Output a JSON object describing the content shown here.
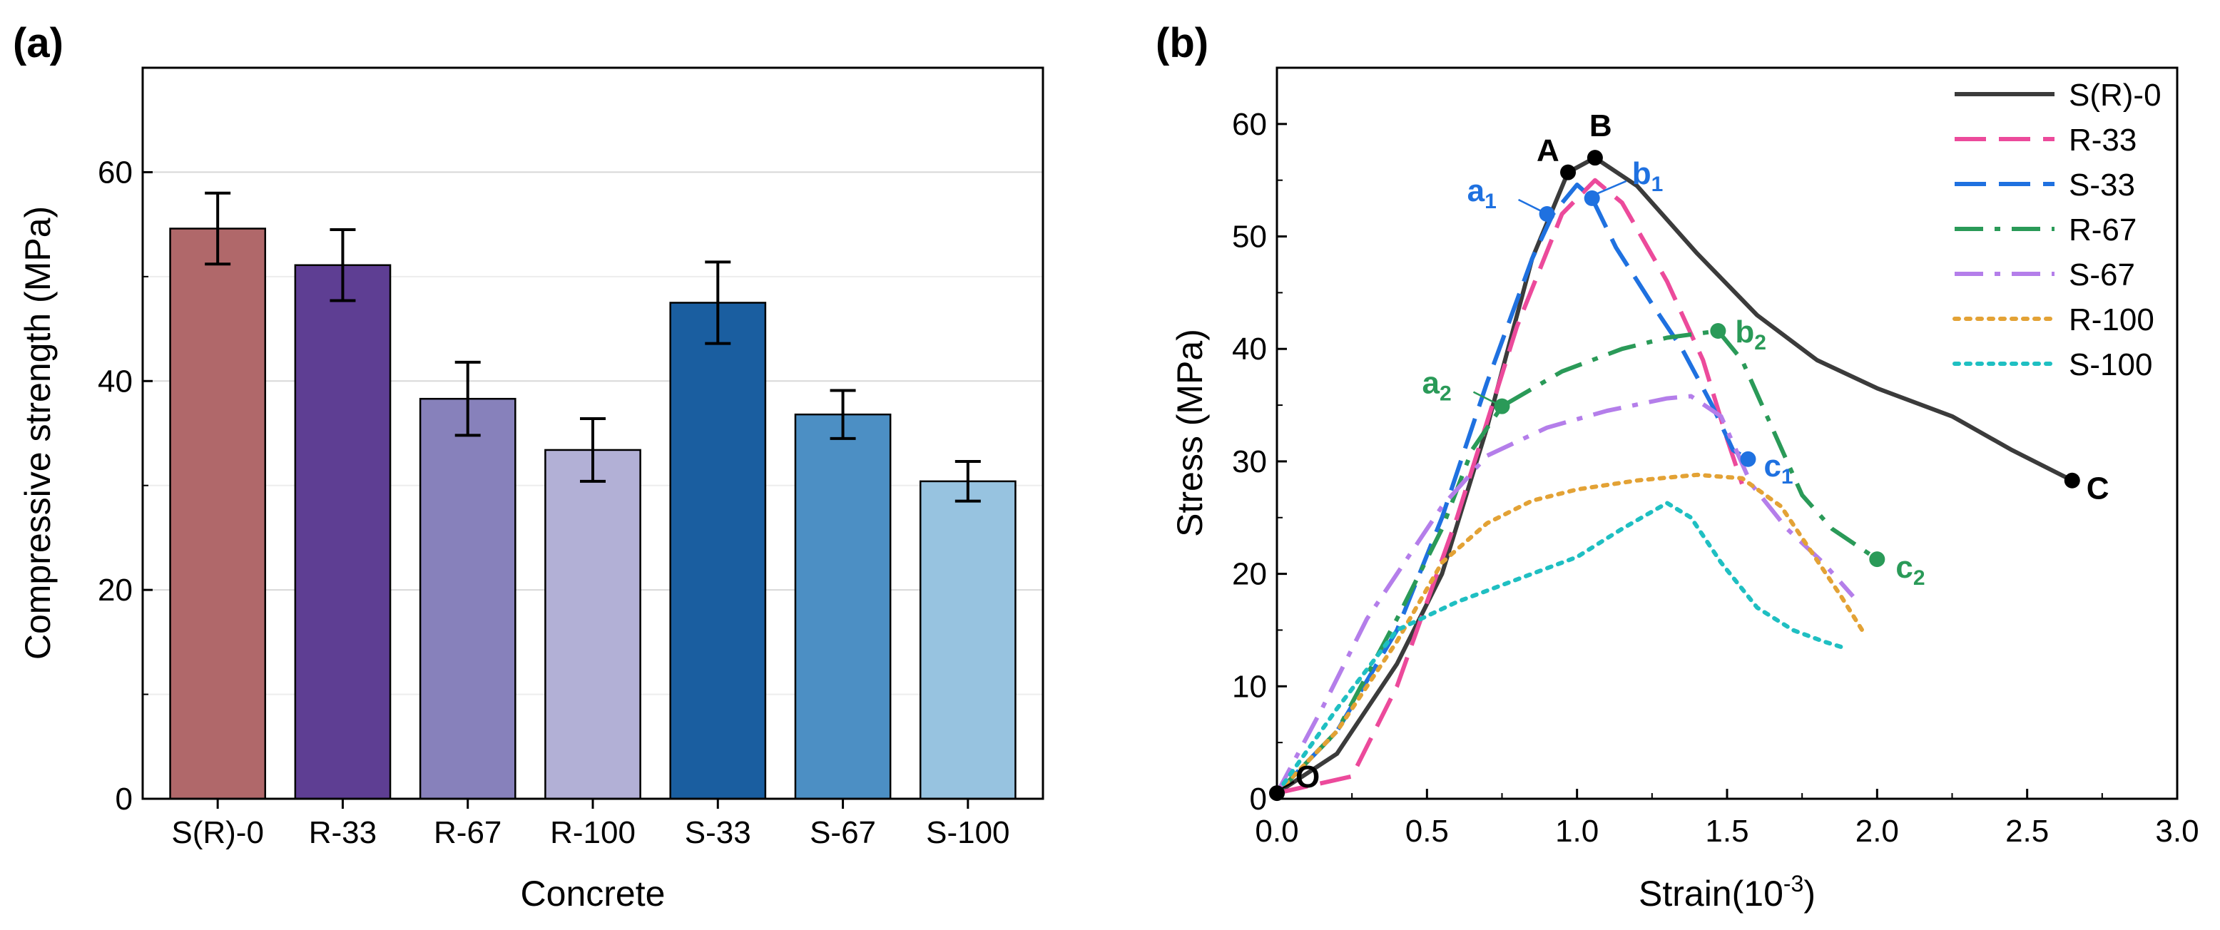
{
  "figure": {
    "panel_a_label": "(a)",
    "panel_b_label": "(b)"
  },
  "chart_data": [
    {
      "type": "bar",
      "panel": "(a)",
      "xlabel": "Concrete",
      "ylabel": "Compressive strength (MPa)",
      "ylim": [
        0,
        70
      ],
      "yticks": [
        0,
        20,
        40,
        60
      ],
      "grid": true,
      "categories": [
        "S(R)-0",
        "R-33",
        "R-67",
        "R-100",
        "S-33",
        "S-67",
        "S-100"
      ],
      "values": [
        54.6,
        51.1,
        38.3,
        33.4,
        47.5,
        36.8,
        30.4
      ],
      "errors": [
        3.4,
        3.4,
        3.5,
        3.0,
        3.9,
        2.3,
        1.9
      ],
      "colors": [
        "#b0686a",
        "#5e3e93",
        "#8781bb",
        "#b2b0d6",
        "#1a5ea0",
        "#4c8fc4",
        "#97c3e0"
      ]
    },
    {
      "type": "line",
      "panel": "(b)",
      "xlabel": "Strain(10⁻³)",
      "xlabel_base": "Strain(10",
      "xlabel_sup": "-3",
      "xlabel_close": ")",
      "ylabel": "Stress (MPa)",
      "xlim": [
        0,
        3.0
      ],
      "ylim": [
        0,
        65
      ],
      "xticks": [
        "0.0",
        "0.5",
        "1.0",
        "1.5",
        "2.0",
        "2.5",
        "3.0"
      ],
      "yticks": [
        "0",
        "10",
        "20",
        "30",
        "40",
        "50",
        "60"
      ],
      "legend_position": "top-right",
      "series": [
        {
          "name": "S(R)-0",
          "color": "#3b3b3b",
          "style": "solid",
          "points": [
            [
              0,
              0.5
            ],
            [
              0.2,
              4
            ],
            [
              0.4,
              12
            ],
            [
              0.55,
              20
            ],
            [
              0.7,
              33
            ],
            [
              0.85,
              48
            ],
            [
              0.97,
              55.7
            ],
            [
              1.06,
              57
            ],
            [
              1.2,
              54.5
            ],
            [
              1.4,
              48.5
            ],
            [
              1.6,
              43
            ],
            [
              1.8,
              39
            ],
            [
              2.0,
              36.5
            ],
            [
              2.25,
              34
            ],
            [
              2.45,
              31
            ],
            [
              2.65,
              28.3
            ]
          ]
        },
        {
          "name": "R-33",
          "color": "#ec4a9b",
          "style": "dash",
          "points": [
            [
              0,
              0.5
            ],
            [
              0.25,
              2
            ],
            [
              0.4,
              10
            ],
            [
              0.6,
              25
            ],
            [
              0.8,
              42
            ],
            [
              0.95,
              52
            ],
            [
              1.06,
              55
            ],
            [
              1.15,
              53
            ],
            [
              1.3,
              46
            ],
            [
              1.42,
              39
            ],
            [
              1.5,
              32
            ],
            [
              1.55,
              28
            ]
          ]
        },
        {
          "name": "S-33",
          "color": "#1f71e0",
          "style": "dash",
          "points": [
            [
              0,
              0.5
            ],
            [
              0.2,
              6
            ],
            [
              0.4,
              15
            ],
            [
              0.55,
              25
            ],
            [
              0.7,
              37
            ],
            [
              0.85,
              48
            ],
            [
              0.92,
              52
            ],
            [
              1.0,
              54.6
            ],
            [
              1.05,
              53.4
            ],
            [
              1.13,
              49
            ],
            [
              1.25,
              44
            ],
            [
              1.35,
              40
            ],
            [
              1.45,
              35
            ],
            [
              1.52,
              31
            ],
            [
              1.57,
              30.2
            ]
          ]
        },
        {
          "name": "R-67",
          "color": "#2a9a58",
          "style": "dashdot",
          "points": [
            [
              0,
              0.5
            ],
            [
              0.2,
              6
            ],
            [
              0.4,
              16
            ],
            [
              0.55,
              24
            ],
            [
              0.65,
              31
            ],
            [
              0.75,
              34.9
            ],
            [
              0.95,
              38
            ],
            [
              1.15,
              40
            ],
            [
              1.3,
              41
            ],
            [
              1.47,
              41.6
            ],
            [
              1.55,
              39
            ],
            [
              1.65,
              33
            ],
            [
              1.75,
              27
            ],
            [
              1.85,
              24
            ],
            [
              2.0,
              21.3
            ]
          ]
        },
        {
          "name": "S-67",
          "color": "#b47eea",
          "style": "dashdot",
          "points": [
            [
              0,
              0.5
            ],
            [
              0.15,
              8
            ],
            [
              0.3,
              16
            ],
            [
              0.45,
              22
            ],
            [
              0.55,
              26
            ],
            [
              0.7,
              30.5
            ],
            [
              0.9,
              33
            ],
            [
              1.1,
              34.5
            ],
            [
              1.3,
              35.6
            ],
            [
              1.38,
              35.8
            ],
            [
              1.48,
              34
            ],
            [
              1.58,
              28
            ],
            [
              1.7,
              24
            ],
            [
              1.82,
              21
            ],
            [
              1.92,
              18
            ]
          ]
        },
        {
          "name": "R-100",
          "color": "#e3a235",
          "style": "dot",
          "points": [
            [
              0,
              0.5
            ],
            [
              0.2,
              6
            ],
            [
              0.4,
              14
            ],
            [
              0.55,
              21
            ],
            [
              0.7,
              24.5
            ],
            [
              0.85,
              26.5
            ],
            [
              1.0,
              27.5
            ],
            [
              1.2,
              28.3
            ],
            [
              1.4,
              28.8
            ],
            [
              1.55,
              28.5
            ],
            [
              1.68,
              26
            ],
            [
              1.78,
              22
            ],
            [
              1.88,
              18
            ],
            [
              1.95,
              15
            ]
          ]
        },
        {
          "name": "S-100",
          "color": "#1fbfc2",
          "style": "dot",
          "points": [
            [
              0,
              0.5
            ],
            [
              0.2,
              8
            ],
            [
              0.4,
              15
            ],
            [
              0.6,
              17.5
            ],
            [
              0.8,
              19.5
            ],
            [
              1.0,
              21.5
            ],
            [
              1.15,
              24
            ],
            [
              1.3,
              26.3
            ],
            [
              1.38,
              25
            ],
            [
              1.48,
              21
            ],
            [
              1.6,
              17
            ],
            [
              1.72,
              15
            ],
            [
              1.82,
              14
            ],
            [
              1.88,
              13.5
            ]
          ]
        }
      ],
      "markers": [
        {
          "label": "O",
          "x": 0.0,
          "y": 0.5,
          "color": "#000000"
        },
        {
          "label": "A",
          "x": 0.97,
          "y": 55.7,
          "color": "#000000"
        },
        {
          "label": "B",
          "x": 1.06,
          "y": 57.0,
          "color": "#000000"
        },
        {
          "label": "C",
          "x": 2.65,
          "y": 28.3,
          "color": "#000000"
        },
        {
          "label": "a",
          "sub": "1",
          "x": 0.9,
          "y": 52.0,
          "color": "#1f71e0"
        },
        {
          "label": "b",
          "sub": "1",
          "x": 1.05,
          "y": 53.4,
          "color": "#1f71e0"
        },
        {
          "label": "c",
          "sub": "1",
          "x": 1.57,
          "y": 30.2,
          "color": "#1f71e0"
        },
        {
          "label": "a",
          "sub": "2",
          "x": 0.75,
          "y": 34.9,
          "color": "#2a9a58"
        },
        {
          "label": "b",
          "sub": "2",
          "x": 1.47,
          "y": 41.6,
          "color": "#2a9a58"
        },
        {
          "label": "c",
          "sub": "2",
          "x": 2.0,
          "y": 21.3,
          "color": "#2a9a58"
        }
      ]
    }
  ]
}
